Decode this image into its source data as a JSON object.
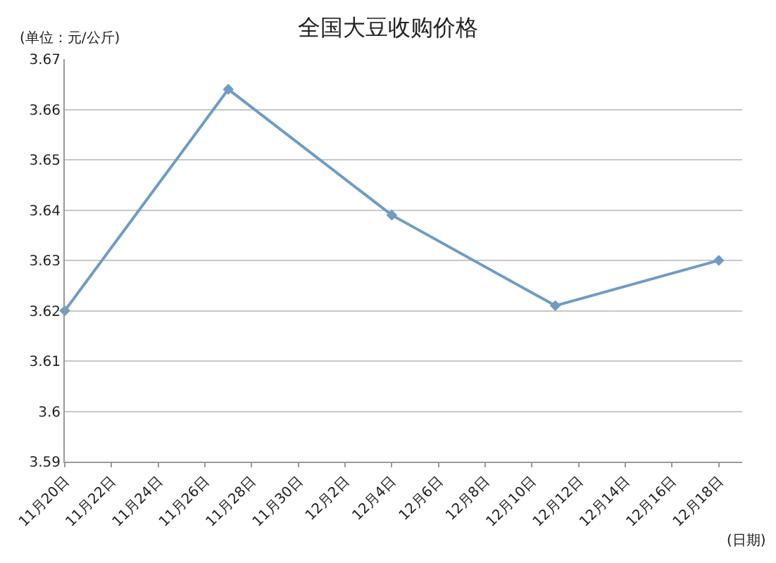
{
  "chart_data": {
    "type": "line",
    "title": "全国大豆收购价格",
    "ylabel": "(单位：元/公斤)",
    "xlabel": "(日期)",
    "x": [
      "--11-20",
      "--11-27",
      "--12-04",
      "--12-11",
      "--12-18"
    ],
    "series": [
      {
        "color": "#6f9cc4",
        "values": [
          3.62,
          3.664,
          3.639,
          3.621,
          3.63
        ]
      }
    ],
    "xlim": [
      "--11-20",
      "--12-19"
    ],
    "xticks": [
      {
        "value": "--11-20",
        "label": "11月20日"
      },
      {
        "value": "--11-22",
        "label": "11月22日"
      },
      {
        "value": "--11-24",
        "label": "11月24日"
      },
      {
        "value": "--11-26",
        "label": "11月26日"
      },
      {
        "value": "--11-28",
        "label": "11月28日"
      },
      {
        "value": "--11-30",
        "label": "11月30日"
      },
      {
        "value": "--12-02",
        "label": "12月2日"
      },
      {
        "value": "--12-04",
        "label": "12月4日"
      },
      {
        "value": "--12-06",
        "label": "12月6日"
      },
      {
        "value": "--12-08",
        "label": "12月8日"
      },
      {
        "value": "--12-10",
        "label": "12月10日"
      },
      {
        "value": "--12-12",
        "label": "12月12日"
      },
      {
        "value": "--12-14",
        "label": "12月14日"
      },
      {
        "value": "--12-16",
        "label": "12月16日"
      },
      {
        "value": "--12-18",
        "label": "12月18日"
      }
    ],
    "ylim": [
      3.59,
      3.67
    ],
    "yticks": [
      3.59,
      3.6,
      3.61,
      3.62,
      3.63,
      3.64,
      3.65,
      3.66,
      3.67
    ],
    "grid": "y",
    "marker": "diamond",
    "line_style": "solid"
  }
}
